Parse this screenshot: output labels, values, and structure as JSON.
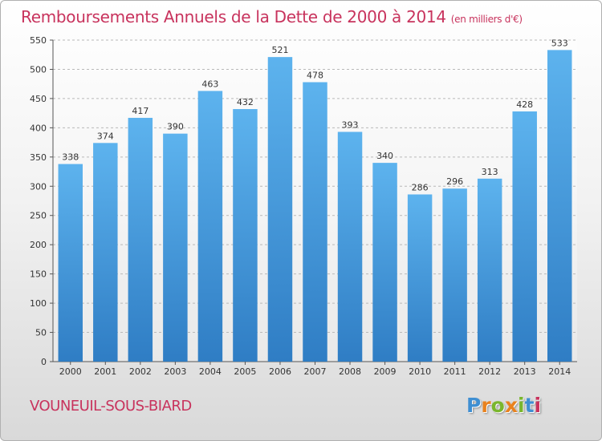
{
  "chart_data": {
    "type": "bar",
    "title": "Remboursements Annuels de la Dette de 2000 à 2014",
    "subtitle": "(en milliers d'€)",
    "categories": [
      "2000",
      "2001",
      "2002",
      "2003",
      "2004",
      "2005",
      "2006",
      "2007",
      "2008",
      "2009",
      "2010",
      "2011",
      "2012",
      "2013",
      "2014"
    ],
    "values": [
      338,
      374,
      417,
      390,
      463,
      432,
      521,
      478,
      393,
      340,
      286,
      296,
      313,
      428,
      533
    ],
    "ylim": [
      0,
      550
    ],
    "yticks": [
      0,
      50,
      100,
      150,
      200,
      250,
      300,
      350,
      400,
      450,
      500,
      550
    ],
    "grid": true,
    "bar_color": "#4a9ee0"
  },
  "footer": {
    "town": "VOUNEUIL-SOUS-BIARD",
    "brand": "Proxiti",
    "brand_colors": [
      "#3f8fd2",
      "#e9821e",
      "#7ab62d",
      "#e9821e",
      "#7ab62d",
      "#3f8fd2",
      "#c8335d"
    ]
  }
}
